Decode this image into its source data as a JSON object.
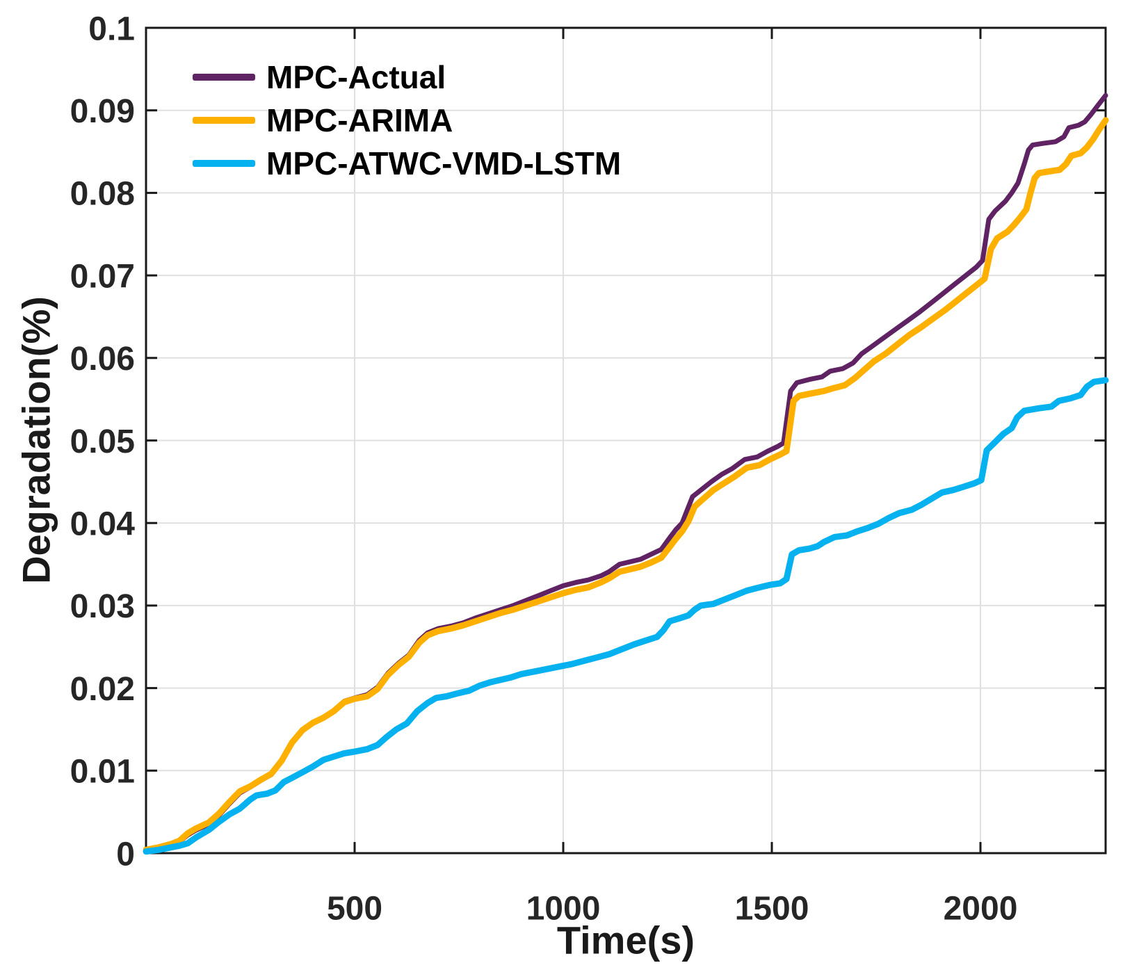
{
  "chart_data": {
    "type": "line",
    "title": "",
    "xlabel": "Time(s)",
    "ylabel": "Degradation(%)",
    "xlim": [
      0,
      2300
    ],
    "ylim": [
      0,
      0.1
    ],
    "grid": true,
    "legend_position": "top-left-inside",
    "x_ticks": [
      500,
      1000,
      1500,
      2000
    ],
    "x_tick_labels": [
      "500",
      "1000",
      "1500",
      "2000"
    ],
    "y_ticks": [
      0,
      0.01,
      0.02,
      0.03,
      0.04,
      0.05,
      0.06,
      0.07,
      0.08,
      0.09,
      0.1
    ],
    "y_tick_labels": [
      "0",
      "0.01",
      "0.02",
      "0.03",
      "0.04",
      "0.05",
      "0.06",
      "0.07",
      "0.08",
      "0.09",
      "0.1"
    ],
    "style": {
      "background": "#FFFFFF",
      "axis_color": "#1A1A1A",
      "grid_color": "#E0E0E0",
      "tick_text_color": "#262626"
    },
    "series": [
      {
        "name": "MPC-Actual",
        "color": "#5F2363",
        "x": [
          0,
          30,
          60,
          80,
          100,
          120,
          150,
          175,
          200,
          225,
          250,
          275,
          300,
          325,
          350,
          375,
          400,
          425,
          450,
          475,
          500,
          530,
          555,
          580,
          605,
          630,
          655,
          675,
          700,
          730,
          760,
          790,
          820,
          850,
          880,
          910,
          940,
          970,
          1000,
          1030,
          1060,
          1090,
          1110,
          1135,
          1160,
          1185,
          1210,
          1235,
          1255,
          1270,
          1285,
          1295,
          1310,
          1330,
          1355,
          1380,
          1405,
          1435,
          1465,
          1490,
          1515,
          1528,
          1545,
          1560,
          1590,
          1620,
          1640,
          1670,
          1695,
          1715,
          1740,
          1770,
          1800,
          1825,
          1855,
          1885,
          1910,
          1935,
          1960,
          1990,
          2005,
          2020,
          2035,
          2060,
          2075,
          2090,
          2105,
          2115,
          2125,
          2150,
          2180,
          2200,
          2212,
          2235,
          2250,
          2265,
          2280,
          2300
        ],
        "y": [
          0.0003,
          0.0006,
          0.001,
          0.0014,
          0.0022,
          0.0028,
          0.0035,
          0.0046,
          0.006,
          0.0073,
          0.008,
          0.0088,
          0.0095,
          0.0111,
          0.0133,
          0.0148,
          0.0158,
          0.0164,
          0.0173,
          0.0184,
          0.0188,
          0.0192,
          0.0201,
          0.0218,
          0.023,
          0.024,
          0.0258,
          0.0267,
          0.0272,
          0.0275,
          0.0279,
          0.0285,
          0.029,
          0.0295,
          0.03,
          0.0306,
          0.0312,
          0.0318,
          0.0324,
          0.0328,
          0.0331,
          0.0336,
          0.0341,
          0.035,
          0.0353,
          0.0356,
          0.0362,
          0.0368,
          0.0382,
          0.0392,
          0.04,
          0.0413,
          0.0432,
          0.044,
          0.045,
          0.0459,
          0.0466,
          0.0477,
          0.048,
          0.0487,
          0.0493,
          0.0497,
          0.056,
          0.057,
          0.0574,
          0.0577,
          0.0584,
          0.0587,
          0.0594,
          0.0605,
          0.0614,
          0.0625,
          0.0636,
          0.0645,
          0.0656,
          0.0668,
          0.0678,
          0.0688,
          0.0698,
          0.071,
          0.0718,
          0.0768,
          0.0778,
          0.079,
          0.08,
          0.0812,
          0.0835,
          0.0852,
          0.0858,
          0.086,
          0.0862,
          0.0868,
          0.0879,
          0.0882,
          0.0886,
          0.0895,
          0.0905,
          0.0918
        ]
      },
      {
        "name": "MPC-ARIMA",
        "color": "#FEB001",
        "x": [
          0,
          30,
          60,
          80,
          100,
          120,
          150,
          175,
          200,
          225,
          250,
          275,
          300,
          325,
          350,
          375,
          400,
          425,
          450,
          475,
          500,
          530,
          555,
          580,
          605,
          630,
          655,
          675,
          700,
          730,
          760,
          790,
          820,
          850,
          880,
          910,
          940,
          970,
          1000,
          1030,
          1060,
          1090,
          1110,
          1135,
          1160,
          1185,
          1210,
          1235,
          1255,
          1270,
          1285,
          1300,
          1315,
          1335,
          1360,
          1385,
          1410,
          1440,
          1470,
          1495,
          1520,
          1535,
          1552,
          1565,
          1595,
          1625,
          1645,
          1675,
          1700,
          1720,
          1745,
          1775,
          1805,
          1830,
          1860,
          1890,
          1915,
          1940,
          1965,
          1995,
          2010,
          2025,
          2040,
          2065,
          2080,
          2095,
          2110,
          2120,
          2130,
          2140,
          2165,
          2190,
          2205,
          2218,
          2240,
          2255,
          2270,
          2285,
          2300
        ],
        "y": [
          0.0004,
          0.0007,
          0.0011,
          0.0015,
          0.0024,
          0.003,
          0.0037,
          0.0048,
          0.0062,
          0.0075,
          0.0081,
          0.0089,
          0.0096,
          0.0112,
          0.0134,
          0.0149,
          0.0158,
          0.0164,
          0.0172,
          0.0183,
          0.0187,
          0.019,
          0.0199,
          0.0216,
          0.0228,
          0.0238,
          0.0255,
          0.0264,
          0.0269,
          0.0272,
          0.0276,
          0.0281,
          0.0286,
          0.0291,
          0.0295,
          0.03,
          0.0305,
          0.031,
          0.0315,
          0.0319,
          0.0322,
          0.0328,
          0.0333,
          0.0341,
          0.0344,
          0.0347,
          0.0352,
          0.0358,
          0.0371,
          0.0381,
          0.039,
          0.0402,
          0.042,
          0.0429,
          0.044,
          0.0448,
          0.0456,
          0.0467,
          0.047,
          0.0477,
          0.0483,
          0.0487,
          0.0548,
          0.0554,
          0.0557,
          0.056,
          0.0563,
          0.0567,
          0.0576,
          0.0585,
          0.0596,
          0.0606,
          0.0618,
          0.0628,
          0.0638,
          0.0649,
          0.0658,
          0.0668,
          0.0678,
          0.069,
          0.0696,
          0.0732,
          0.0745,
          0.0753,
          0.0761,
          0.077,
          0.078,
          0.08,
          0.0818,
          0.0824,
          0.0826,
          0.0828,
          0.0835,
          0.0845,
          0.0848,
          0.0855,
          0.0865,
          0.0877,
          0.0888
        ]
      },
      {
        "name": "MPC-ATWC-VMD-LSTM",
        "color": "#06B1F0",
        "x": [
          0,
          30,
          60,
          80,
          100,
          120,
          150,
          175,
          200,
          225,
          250,
          265,
          290,
          310,
          330,
          345,
          375,
          400,
          425,
          450,
          475,
          500,
          530,
          555,
          575,
          600,
          625,
          650,
          675,
          695,
          720,
          750,
          775,
          800,
          825,
          850,
          875,
          900,
          930,
          960,
          990,
          1020,
          1050,
          1080,
          1110,
          1140,
          1170,
          1200,
          1225,
          1240,
          1255,
          1275,
          1300,
          1315,
          1330,
          1360,
          1385,
          1410,
          1440,
          1470,
          1495,
          1520,
          1535,
          1548,
          1565,
          1590,
          1610,
          1625,
          1650,
          1680,
          1705,
          1730,
          1755,
          1780,
          1805,
          1835,
          1858,
          1888,
          1908,
          1935,
          1960,
          1985,
          2002,
          2015,
          2035,
          2055,
          2075,
          2088,
          2105,
          2140,
          2170,
          2188,
          2215,
          2240,
          2255,
          2272,
          2300
        ],
        "y": [
          0.0002,
          0.0004,
          0.0007,
          0.0009,
          0.0012,
          0.0019,
          0.0028,
          0.0038,
          0.0047,
          0.0054,
          0.0065,
          0.007,
          0.0072,
          0.0076,
          0.0086,
          0.009,
          0.0098,
          0.0105,
          0.0113,
          0.0117,
          0.0121,
          0.0123,
          0.0126,
          0.0131,
          0.014,
          0.015,
          0.0157,
          0.0172,
          0.0182,
          0.0188,
          0.019,
          0.0194,
          0.0197,
          0.0203,
          0.0207,
          0.021,
          0.0213,
          0.0217,
          0.022,
          0.0223,
          0.0226,
          0.0229,
          0.0233,
          0.0237,
          0.0241,
          0.0247,
          0.0253,
          0.0258,
          0.0262,
          0.027,
          0.0281,
          0.0284,
          0.0288,
          0.0295,
          0.03,
          0.0302,
          0.0307,
          0.0312,
          0.0318,
          0.0322,
          0.0325,
          0.0327,
          0.0332,
          0.0362,
          0.0367,
          0.0369,
          0.0372,
          0.0377,
          0.0383,
          0.0385,
          0.039,
          0.0394,
          0.0399,
          0.0406,
          0.0412,
          0.0416,
          0.0422,
          0.0431,
          0.0437,
          0.044,
          0.0444,
          0.0448,
          0.0452,
          0.0488,
          0.0498,
          0.0508,
          0.0515,
          0.0528,
          0.0536,
          0.0539,
          0.0541,
          0.0548,
          0.0551,
          0.0555,
          0.0565,
          0.0571,
          0.0573
        ]
      }
    ]
  }
}
